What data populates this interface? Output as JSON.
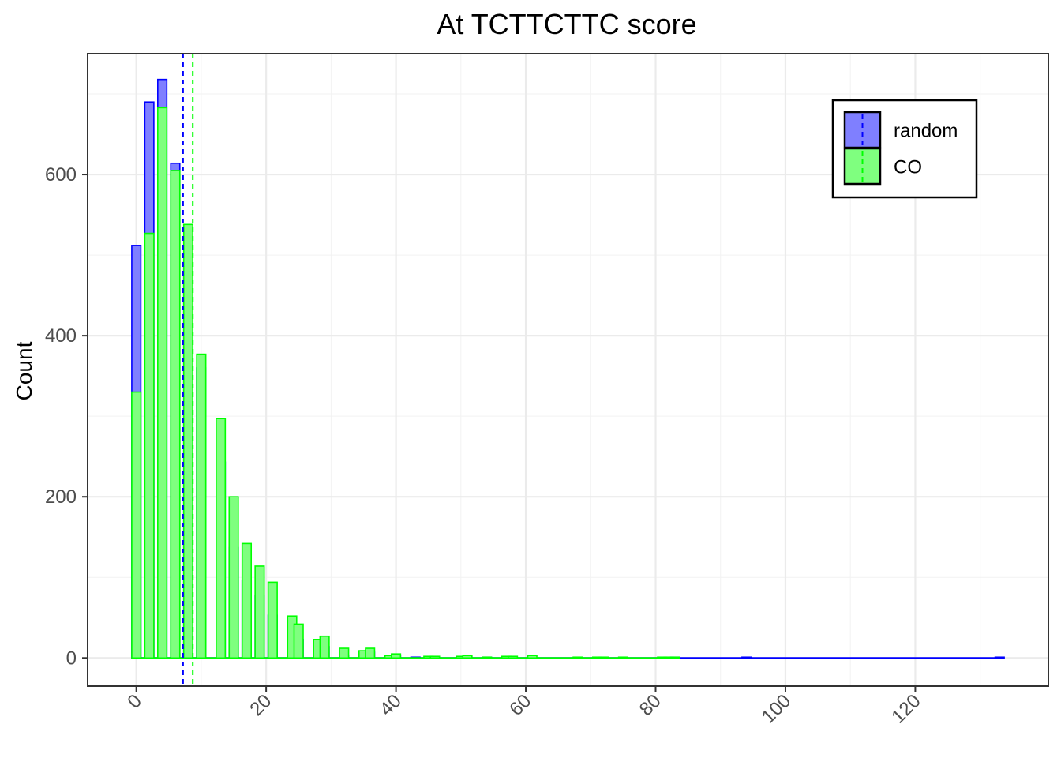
{
  "chart_data": {
    "type": "bar",
    "title": "At TCTTCTTC score",
    "xlabel": "",
    "ylabel": "Count",
    "xlim": [
      -7.5,
      140.5
    ],
    "ylim": [
      -35,
      750
    ],
    "xticks": [
      0,
      20,
      40,
      60,
      80,
      100,
      120
    ],
    "yticks": [
      0,
      200,
      400,
      600
    ],
    "grid": true,
    "legend_position": "top-right",
    "series": [
      {
        "name": "random",
        "fill": "#7f7fff",
        "stroke": "#0000ff",
        "mean": 7.2,
        "bins": [
          [
            0,
            512
          ],
          [
            2,
            690
          ],
          [
            4,
            718
          ],
          [
            6,
            614
          ],
          [
            8,
            492
          ],
          [
            10,
            360
          ],
          [
            13,
            243
          ],
          [
            15,
            137
          ],
          [
            17,
            96
          ],
          [
            19,
            77
          ],
          [
            21,
            53
          ],
          [
            24,
            33
          ],
          [
            25,
            23
          ],
          [
            28,
            18
          ],
          [
            29,
            14
          ],
          [
            32,
            3
          ],
          [
            35,
            5
          ],
          [
            36,
            7
          ],
          [
            39,
            2
          ],
          [
            40,
            3
          ],
          [
            43,
            1
          ],
          [
            46,
            1
          ],
          [
            51,
            1
          ],
          [
            54,
            1
          ],
          [
            57,
            1
          ],
          [
            83,
            1
          ],
          [
            94,
            1
          ],
          [
            133,
            1
          ]
        ]
      },
      {
        "name": "CO",
        "fill": "#7fff7f",
        "stroke": "#00ff00",
        "mean": 8.7,
        "bins": [
          [
            0,
            330
          ],
          [
            2,
            527
          ],
          [
            4,
            683
          ],
          [
            6,
            605
          ],
          [
            8,
            538
          ],
          [
            10,
            377
          ],
          [
            13,
            297
          ],
          [
            15,
            200
          ],
          [
            17,
            142
          ],
          [
            19,
            114
          ],
          [
            21,
            94
          ],
          [
            24,
            52
          ],
          [
            25,
            42
          ],
          [
            28,
            23
          ],
          [
            29,
            27
          ],
          [
            32,
            12
          ],
          [
            35,
            9
          ],
          [
            36,
            12
          ],
          [
            39,
            3
          ],
          [
            40,
            5
          ],
          [
            45,
            2
          ],
          [
            46,
            2
          ],
          [
            50,
            2
          ],
          [
            51,
            3
          ],
          [
            54,
            1
          ],
          [
            57,
            2
          ],
          [
            58,
            2
          ],
          [
            61,
            3
          ],
          [
            68,
            1
          ],
          [
            71,
            1
          ],
          [
            72,
            1
          ],
          [
            75,
            1
          ],
          [
            81,
            1
          ],
          [
            82,
            1
          ],
          [
            83,
            1
          ]
        ]
      }
    ]
  }
}
